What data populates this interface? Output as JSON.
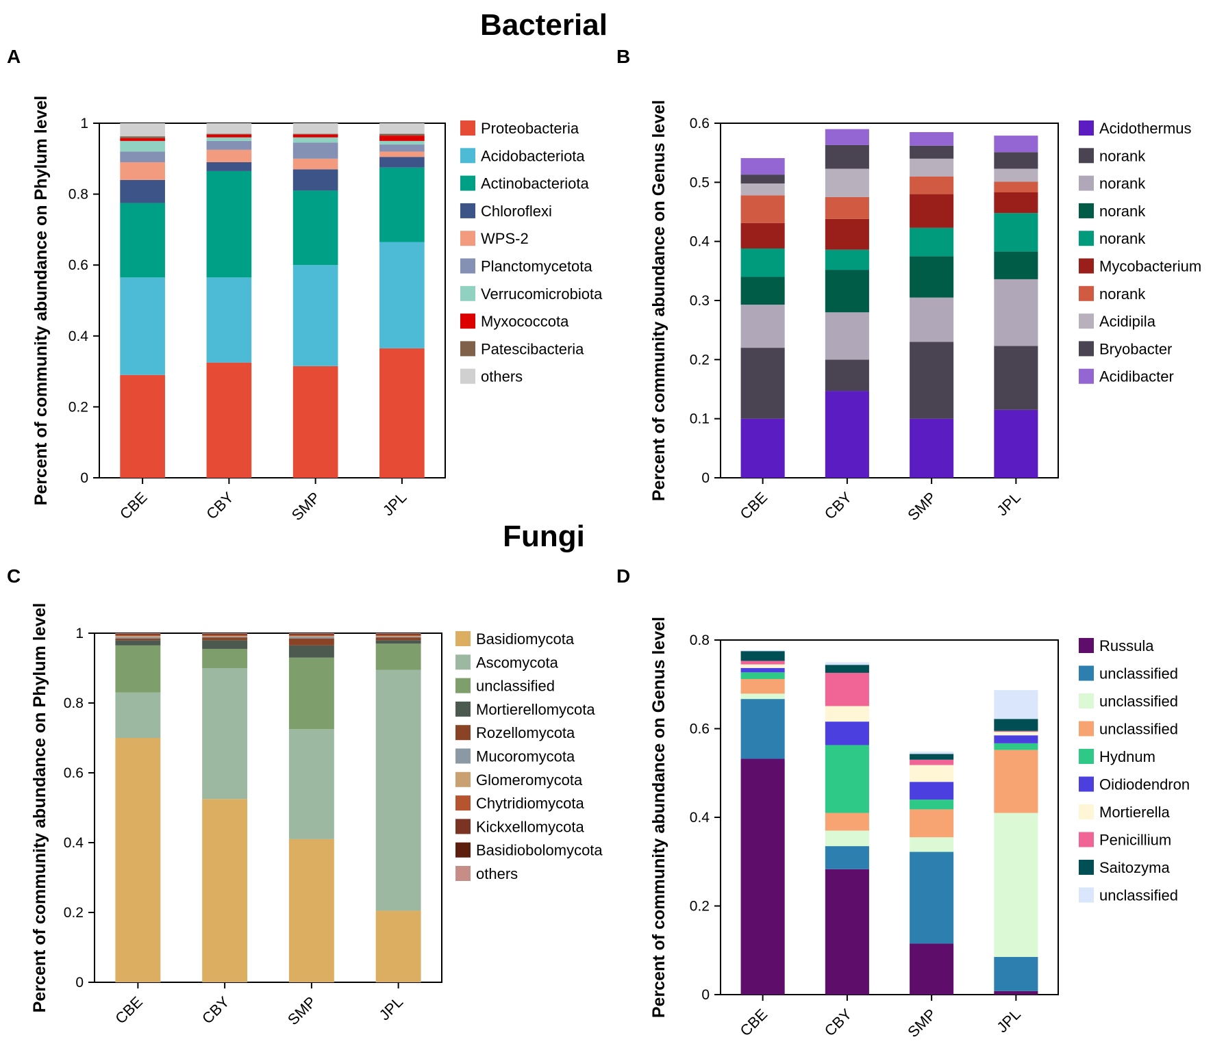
{
  "figure": {
    "section_titles": [
      "Bacterial",
      "Fungi"
    ]
  },
  "chart_data": [
    {
      "panel": "A",
      "type": "bar",
      "stacked": true,
      "ylabel": "Percent of community abundance on Phylum level",
      "ylim": [
        0,
        1
      ],
      "yticks": [
        0,
        0.2,
        0.4,
        0.6,
        0.8,
        1
      ],
      "ytick_labels": [
        "0",
        "0.2",
        "0.4",
        "0.6",
        "0.8",
        "1"
      ],
      "categories": [
        "CBE",
        "CBY",
        "SMP",
        "JPL"
      ],
      "series": [
        {
          "name": "Proteobacteria",
          "color": "#E64B35",
          "values": [
            0.29,
            0.325,
            0.315,
            0.365
          ]
        },
        {
          "name": "Acidobacteriota",
          "color": "#4DBBD5",
          "values": [
            0.275,
            0.24,
            0.285,
            0.3
          ]
        },
        {
          "name": "Actinobacteriota",
          "color": "#00A087",
          "values": [
            0.21,
            0.3,
            0.21,
            0.21
          ]
        },
        {
          "name": "Chloroflexi",
          "color": "#3C5488",
          "values": [
            0.065,
            0.025,
            0.06,
            0.03
          ]
        },
        {
          "name": "WPS-2",
          "color": "#F39B7F",
          "values": [
            0.05,
            0.035,
            0.03,
            0.015
          ]
        },
        {
          "name": "Planctomycetota",
          "color": "#8491B4",
          "values": [
            0.03,
            0.025,
            0.045,
            0.02
          ]
        },
        {
          "name": "Verrucomicrobiota",
          "color": "#91D1C2",
          "values": [
            0.03,
            0.01,
            0.015,
            0.01
          ]
        },
        {
          "name": "Myxococcota",
          "color": "#DC0000",
          "values": [
            0.008,
            0.008,
            0.008,
            0.015
          ]
        },
        {
          "name": "Patescibacteria",
          "color": "#7E6148",
          "values": [
            0.005,
            0.002,
            0.002,
            0.005
          ]
        },
        {
          "name": "others",
          "color": "#D0D0D0",
          "values": [
            0.037,
            0.03,
            0.03,
            0.03
          ]
        }
      ]
    },
    {
      "panel": "B",
      "type": "bar",
      "stacked": true,
      "ylabel": "Percent of community abundance on Genus level",
      "ylim": [
        0,
        0.6
      ],
      "yticks": [
        0,
        0.1,
        0.2,
        0.3,
        0.4,
        0.5,
        0.6
      ],
      "ytick_labels": [
        "0",
        "0.1",
        "0.2",
        "0.3",
        "0.4",
        "0.5",
        "0.6"
      ],
      "categories": [
        "CBE",
        "CBY",
        "SMP",
        "JPL"
      ],
      "series": [
        {
          "name": "Acidothermus",
          "color": "#5B1DC2",
          "values": [
            0.1,
            0.147,
            0.1,
            0.115
          ]
        },
        {
          "name": "norank",
          "color": "#4A4352",
          "values": [
            0.12,
            0.053,
            0.13,
            0.108
          ]
        },
        {
          "name": "norank",
          "color": "#B0A8B9",
          "values": [
            0.073,
            0.08,
            0.075,
            0.113
          ]
        },
        {
          "name": "norank",
          "color": "#005C46",
          "values": [
            0.047,
            0.072,
            0.07,
            0.047
          ]
        },
        {
          "name": "norank",
          "color": "#009A7C",
          "values": [
            0.048,
            0.034,
            0.048,
            0.065
          ]
        },
        {
          "name": "Mycobacterium",
          "color": "#9A1E19",
          "values": [
            0.043,
            0.052,
            0.057,
            0.035
          ]
        },
        {
          "name": "norank",
          "color": "#D15A42",
          "values": [
            0.047,
            0.037,
            0.03,
            0.018
          ]
        },
        {
          "name": "Acidipila",
          "color": "#B9B0BE",
          "values": [
            0.02,
            0.048,
            0.03,
            0.022
          ]
        },
        {
          "name": "Bryobacter",
          "color": "#4A4352",
          "values": [
            0.015,
            0.04,
            0.022,
            0.028
          ]
        },
        {
          "name": "Acidibacter",
          "color": "#9366D3",
          "values": [
            0.028,
            0.027,
            0.023,
            0.028
          ]
        }
      ]
    },
    {
      "panel": "C",
      "type": "bar",
      "stacked": true,
      "ylabel": "Percent of community abundance on Phylum level",
      "ylim": [
        0,
        1
      ],
      "yticks": [
        0,
        0.2,
        0.4,
        0.6,
        0.8,
        1
      ],
      "ytick_labels": [
        "0",
        "0.2",
        "0.4",
        "0.6",
        "0.8",
        "1"
      ],
      "categories": [
        "CBE",
        "CBY",
        "SMP",
        "JPL"
      ],
      "series": [
        {
          "name": "Basidiomycota",
          "color": "#DBAE62",
          "values": [
            0.7,
            0.525,
            0.41,
            0.205
          ]
        },
        {
          "name": "Ascomycota",
          "color": "#9DB8A0",
          "values": [
            0.13,
            0.375,
            0.315,
            0.69
          ]
        },
        {
          "name": "unclassified",
          "color": "#7E9E6B",
          "values": [
            0.135,
            0.055,
            0.205,
            0.075
          ]
        },
        {
          "name": "Mortierellomycota",
          "color": "#4B594F",
          "values": [
            0.015,
            0.025,
            0.035,
            0.01
          ]
        },
        {
          "name": "Rozellomycota",
          "color": "#8B4326",
          "values": [
            0.005,
            0.008,
            0.02,
            0.008
          ]
        },
        {
          "name": "Mucoromycota",
          "color": "#8A99A4",
          "values": [
            0.004,
            0.002,
            0.005,
            0.002
          ]
        },
        {
          "name": "Glomeromycota",
          "color": "#C9A070",
          "values": [
            0.003,
            0.002,
            0.002,
            0.002
          ]
        },
        {
          "name": "Chytridiomycota",
          "color": "#B5542F",
          "values": [
            0.003,
            0.003,
            0.003,
            0.003
          ]
        },
        {
          "name": "Kickxellomycota",
          "color": "#7B3324",
          "values": [
            0.002,
            0.002,
            0.002,
            0.002
          ]
        },
        {
          "name": "Basidiobolomycota",
          "color": "#5C1F0E",
          "values": [
            0.001,
            0.001,
            0.001,
            0.001
          ]
        },
        {
          "name": "others",
          "color": "#C78E87",
          "values": [
            0.002,
            0.002,
            0.002,
            0.002
          ]
        }
      ]
    },
    {
      "panel": "D",
      "type": "bar",
      "stacked": true,
      "ylabel": "Percent of community abundance on Genus level",
      "ylim": [
        0,
        0.8
      ],
      "yticks": [
        0,
        0.2,
        0.4,
        0.6,
        0.8
      ],
      "ytick_labels": [
        "0",
        "0.2",
        "0.4",
        "0.6",
        "0.8"
      ],
      "categories": [
        "CBE",
        "CBY",
        "SMP",
        "JPL"
      ],
      "series": [
        {
          "name": "Russula",
          "color": "#5E0E6A",
          "values": [
            0.532,
            0.283,
            0.115,
            0.008
          ]
        },
        {
          "name": "unclassified",
          "color": "#2D7FB0",
          "values": [
            0.135,
            0.052,
            0.207,
            0.077
          ]
        },
        {
          "name": "unclassified",
          "color": "#DCF9D6",
          "values": [
            0.012,
            0.035,
            0.033,
            0.325
          ]
        },
        {
          "name": "unclassified",
          "color": "#F8A472",
          "values": [
            0.033,
            0.04,
            0.063,
            0.142
          ]
        },
        {
          "name": "Hydnum",
          "color": "#2FC987",
          "values": [
            0.015,
            0.153,
            0.022,
            0.015
          ]
        },
        {
          "name": "Oidiodendron",
          "color": "#4B3FE0",
          "values": [
            0.01,
            0.053,
            0.04,
            0.018
          ]
        },
        {
          "name": "Mortierella",
          "color": "#FEF6D4",
          "values": [
            0.008,
            0.035,
            0.038,
            0.008
          ]
        },
        {
          "name": "Penicillium",
          "color": "#F06596",
          "values": [
            0.008,
            0.075,
            0.012,
            0.002
          ]
        },
        {
          "name": "Saitozyma",
          "color": "#004F55",
          "values": [
            0.022,
            0.018,
            0.013,
            0.027
          ]
        },
        {
          "name": "unclassified",
          "color": "#DAE6FB",
          "values": [
            0.002,
            0.006,
            0.005,
            0.065
          ]
        }
      ]
    }
  ]
}
